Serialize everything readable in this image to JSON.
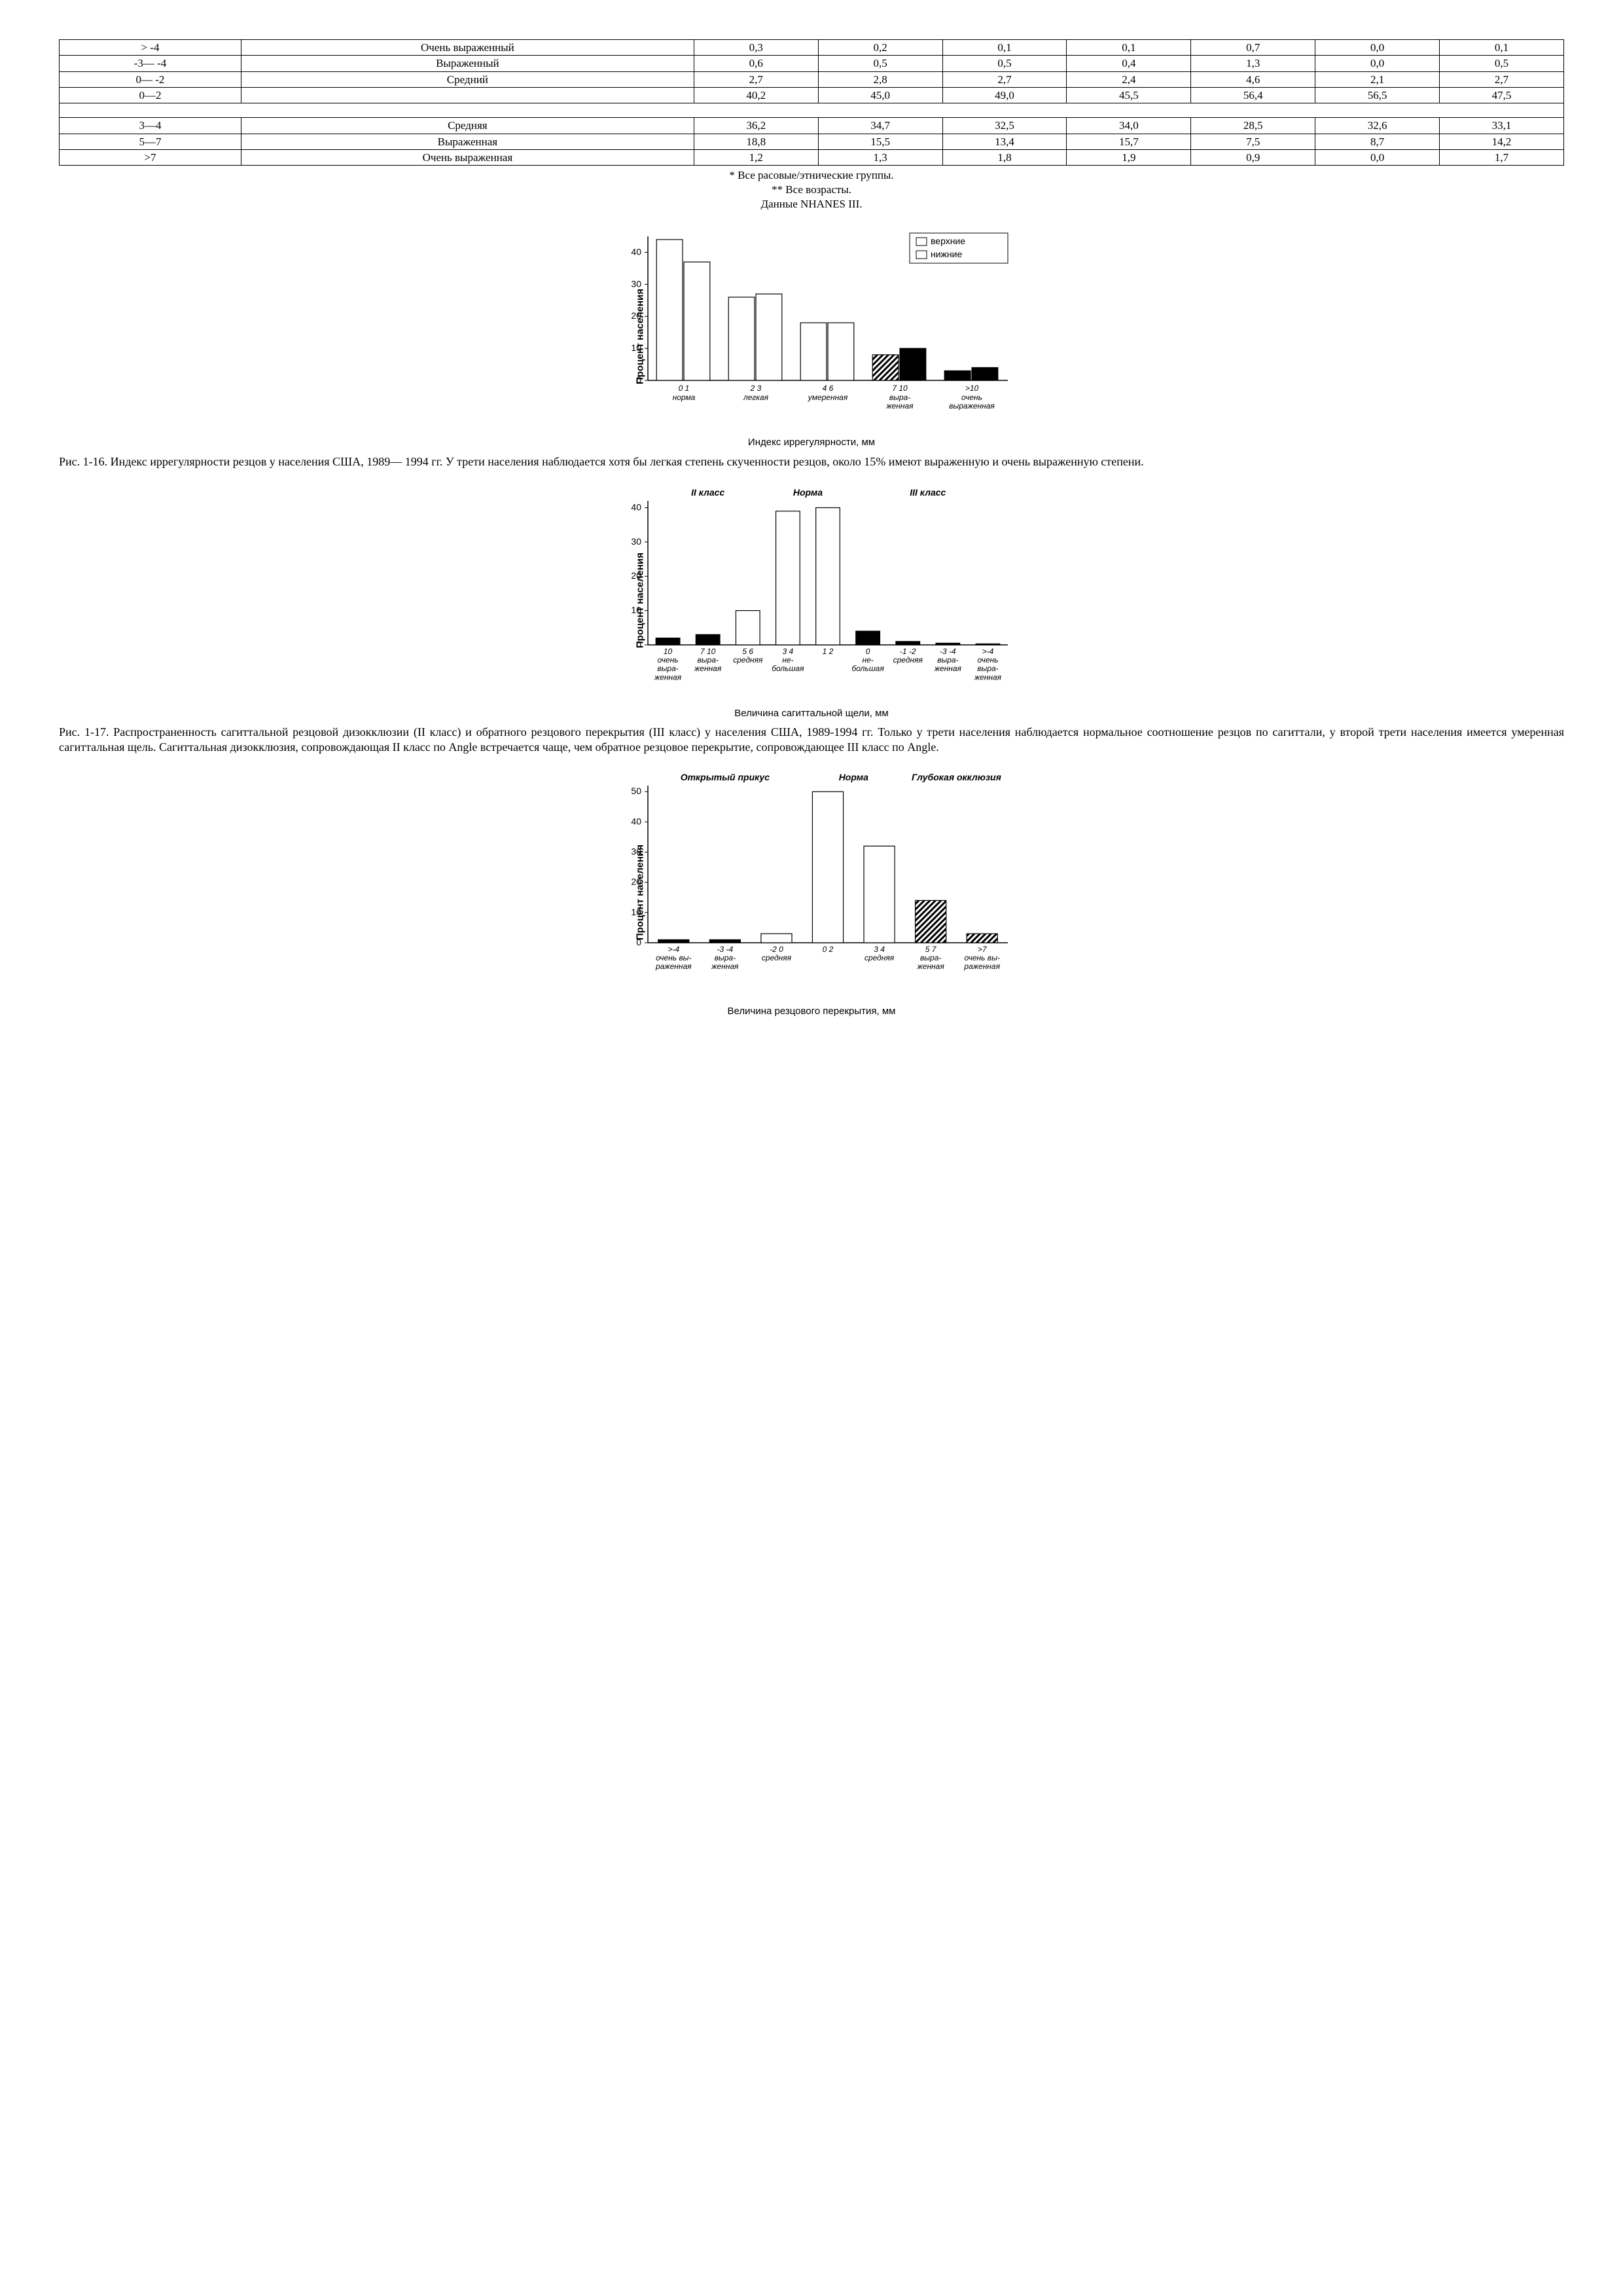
{
  "table": {
    "rows": [
      {
        "range": "> -4",
        "desc": "Очень выраженный",
        "c": [
          "0,3",
          "0,2",
          "0,1",
          "0,1",
          "0,7",
          "0,0",
          "0,1"
        ]
      },
      {
        "range": "-3— -4",
        "desc": "Выраженный",
        "c": [
          "0,6",
          "0,5",
          "0,5",
          "0,4",
          "1,3",
          "0,0",
          "0,5"
        ]
      },
      {
        "range": "0— -2",
        "desc": "Средний",
        "c": [
          "2,7",
          "2,8",
          "2,7",
          "2,4",
          "4,6",
          "2,1",
          "2,7"
        ]
      },
      {
        "range": "0—2",
        "desc": "",
        "c": [
          "40,2",
          "45,0",
          "49,0",
          "45,5",
          "56,4",
          "56,5",
          "47,5"
        ]
      },
      {
        "spacer": true
      },
      {
        "range": "3—4",
        "desc": "Средняя",
        "c": [
          "36,2",
          "34,7",
          "32,5",
          "34,0",
          "28,5",
          "32,6",
          "33,1"
        ]
      },
      {
        "range": "5—7",
        "desc": "Выраженная",
        "c": [
          "18,8",
          "15,5",
          "13,4",
          "15,7",
          "7,5",
          "8,7",
          "14,2"
        ]
      },
      {
        "range": ">7",
        "desc": "Очень выраженная",
        "c": [
          "1,2",
          "1,3",
          "1,8",
          "1,9",
          "0,9",
          "0,0",
          "1,7"
        ]
      }
    ],
    "notes": [
      "* Все расовые/этнические группы.",
      "** Все возрасты.",
      "Данные NHANES III."
    ]
  },
  "chart1": {
    "type": "grouped-bar",
    "y_label": "Процент населения",
    "x_label": "Индекс иррегулярности, мм",
    "ylim": [
      0,
      45
    ],
    "ytick_step": 10,
    "legend": [
      "верхние",
      "нижние"
    ],
    "colors": {
      "upper_fill": "#ffffff",
      "lower_fill": "#ffffff",
      "stroke": "#000000",
      "hatch_fill": "#000000"
    },
    "bar_width": 0.38,
    "categories": [
      {
        "num": "0 1",
        "name": "норма",
        "upper": 44,
        "lower": 37,
        "fill": [
          "white",
          "white"
        ]
      },
      {
        "num": "2 3",
        "name": "легкая",
        "upper": 26,
        "lower": 27,
        "fill": [
          "white",
          "white"
        ]
      },
      {
        "num": "4 6",
        "name": "умеренная",
        "upper": 18,
        "lower": 18,
        "fill": [
          "white",
          "white"
        ]
      },
      {
        "num": "7 10",
        "name": "выра-\nженная",
        "upper": 8,
        "lower": 10,
        "fill": [
          "hatch",
          "black"
        ]
      },
      {
        "num": ">10",
        "name": "очень\nвыраженная",
        "upper": 3,
        "lower": 4,
        "fill": [
          "black",
          "black"
        ]
      }
    ]
  },
  "caption1": "Рис. 1-16. Индекс иррегулярности резцов у населения США, 1989— 1994 гг. У трети населения наблюдается хотя бы легкая степень скученности резцов, около 15% имеют выраженную и очень выраженную степени.",
  "chart2": {
    "type": "bar",
    "y_label": "Процент населения",
    "x_label": "Величина сагиттальной щели, мм",
    "ylim": [
      0,
      42
    ],
    "ytick_step": 10,
    "sections": [
      "II класс",
      "Норма",
      "III класс"
    ],
    "section_spans": [
      [
        0,
        3
      ],
      [
        3,
        5
      ],
      [
        5,
        9
      ]
    ],
    "bar_width": 0.6,
    "categories": [
      {
        "num": "10",
        "name": "очень\nвыра-\nженная",
        "v": 2,
        "fill": "black"
      },
      {
        "num": "7 10",
        "name": "выра-\nженная",
        "v": 3,
        "fill": "black"
      },
      {
        "num": "5 6",
        "name": "средняя",
        "v": 10,
        "fill": "white"
      },
      {
        "num": "3 4",
        "name": "не-\nбольшая",
        "v": 39,
        "fill": "white"
      },
      {
        "num": "1 2",
        "name": "",
        "v": 40,
        "fill": "white"
      },
      {
        "num": "0",
        "name": "не-\nбольшая",
        "v": 4,
        "fill": "black"
      },
      {
        "num": "-1 -2",
        "name": "средняя",
        "v": 1,
        "fill": "black"
      },
      {
        "num": "-3 -4",
        "name": "выра-\nженная",
        "v": 0.5,
        "fill": "black"
      },
      {
        "num": ">-4",
        "name": "очень\nвыра-\nженная",
        "v": 0.3,
        "fill": "black"
      }
    ]
  },
  "caption2": "Рис. 1-17. Распространенность сагиттальной резцовой дизокклюзии (II класс) и обратного резцового перекрытия (III класс) у населения США, 1989-1994 гг. Только у трети населения наблюдается нормальное соотношение резцов по сагиттали, у второй трети населения имеется умеренная сагиттальная щель. Сагиттальная дизокклюзия, сопровождающая II класс по Angle встречается чаще, чем обратное резцовое перекрытие, сопровождающее III класс по Angle.",
  "chart3": {
    "type": "bar",
    "y_label": "Процент населения",
    "x_label": "Величина резцового перекрытия, мм",
    "ylim": [
      0,
      52
    ],
    "ytick_step": 10,
    "sections": [
      "Открытый прикус",
      "Норма",
      "Глубокая окклюзия"
    ],
    "section_spans": [
      [
        0,
        3
      ],
      [
        3,
        5
      ],
      [
        5,
        7
      ]
    ],
    "bar_width": 0.6,
    "categories": [
      {
        "num": ">-4",
        "name": "очень вы-\nраженная",
        "v": 1,
        "fill": "black"
      },
      {
        "num": "-3 -4",
        "name": "выра-\nженная",
        "v": 1,
        "fill": "black"
      },
      {
        "num": "-2 0",
        "name": "средняя",
        "v": 3,
        "fill": "white"
      },
      {
        "num": "0 2",
        "name": "",
        "v": 50,
        "fill": "white"
      },
      {
        "num": "3 4",
        "name": "средняя",
        "v": 32,
        "fill": "white"
      },
      {
        "num": "5 7",
        "name": "выра-\nженная",
        "v": 14,
        "fill": "hatch"
      },
      {
        "num": ">7",
        "name": "очень вы-\nраженная",
        "v": 3,
        "fill": "hatch"
      }
    ]
  }
}
